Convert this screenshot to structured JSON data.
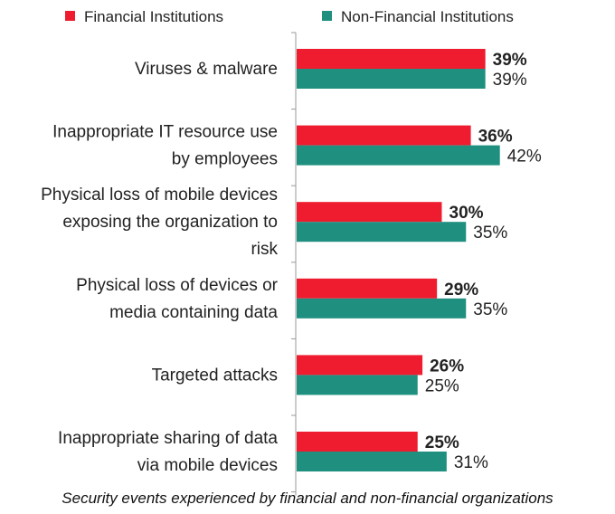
{
  "caption": "Security events experienced by financial and non-financial organizations",
  "chart_data": {
    "type": "bar",
    "orientation": "horizontal",
    "categories": [
      [
        "Viruses & malware"
      ],
      [
        "Inappropriate IT resource use",
        "by employees"
      ],
      [
        "Physical loss of mobile devices",
        "exposing the organization to",
        "risk"
      ],
      [
        "Physical loss of devices or",
        "media containing data"
      ],
      [
        "Targeted attacks"
      ],
      [
        "Inappropriate sharing of data",
        "via mobile devices"
      ]
    ],
    "series": [
      {
        "name": "Financial Institutions",
        "color": "#ee1c2e",
        "values": [
          39,
          36,
          30,
          29,
          26,
          25
        ],
        "labels": [
          "39%",
          "36%",
          "30%",
          "29%",
          "26%",
          "25%"
        ],
        "label_bold": true
      },
      {
        "name": "Non-Financial Institutions",
        "color": "#1f8f80",
        "values": [
          39,
          42,
          35,
          35,
          25,
          31
        ],
        "labels": [
          "39%",
          "42%",
          "35%",
          "35%",
          "25%",
          "31%"
        ],
        "label_bold": false
      }
    ],
    "xlim": [
      0,
      100
    ],
    "legend": "top",
    "grid": false
  }
}
